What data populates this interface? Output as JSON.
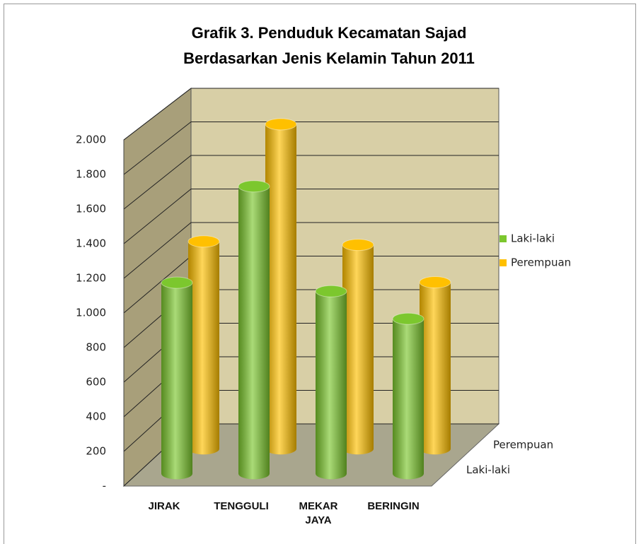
{
  "chart_data": {
    "type": "bar3d",
    "title": [
      "Grafik 3. Penduduk Kecamatan Sajad",
      "Berdasarkan Jenis Kelamin Tahun 2011"
    ],
    "categories": [
      "JIRAK",
      "TENGGULI",
      "MEKAR JAYA",
      "BERINGIN"
    ],
    "series": [
      {
        "name": "Laki-laki",
        "color": "#7cc72e",
        "values": [
          1110,
          1670,
          1060,
          900
        ]
      },
      {
        "name": "Perempuan",
        "color": "#ffc000",
        "values": [
          1220,
          1910,
          1200,
          980
        ]
      }
    ],
    "ylim": [
      0,
      2000
    ],
    "yticks": [
      {
        "value": 0,
        "label": "-"
      },
      200,
      400,
      600,
      800,
      {
        "value": 1000,
        "label": "1.000"
      },
      {
        "value": 1200,
        "label": "1.200"
      },
      {
        "value": 1400,
        "label": "1.400"
      },
      {
        "value": 1600,
        "label": "1.600"
      },
      {
        "value": 1800,
        "label": "1.800"
      },
      {
        "value": 2000,
        "label": "2.000"
      }
    ],
    "grid": true,
    "legend": "right"
  }
}
